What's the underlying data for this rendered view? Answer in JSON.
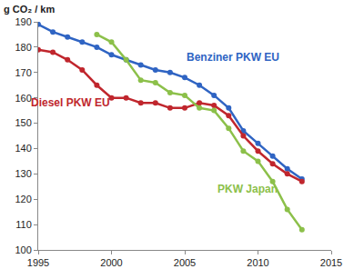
{
  "chart_data": {
    "type": "line",
    "ylabel": "g CO₂ / km",
    "x": [
      1995,
      1996,
      1997,
      1998,
      1999,
      2000,
      2001,
      2002,
      2003,
      2004,
      2005,
      2006,
      2007,
      2008,
      2009,
      2010,
      2011,
      2012,
      2013
    ],
    "series": [
      {
        "name": "Benziner PKW EU",
        "color": "#2f64c3",
        "values": [
          189,
          186,
          184,
          182,
          180,
          177,
          175,
          173,
          171,
          170,
          168,
          165,
          161,
          156,
          147,
          142,
          137,
          132,
          128
        ]
      },
      {
        "name": "Diesel PKW EU",
        "color": "#c0262d",
        "values": [
          179,
          178,
          175,
          171,
          165,
          160,
          160,
          158,
          158,
          156,
          156,
          158,
          157,
          153,
          145,
          139,
          134,
          130,
          127
        ]
      },
      {
        "name": "PKW Japan",
        "color": "#8cc04a",
        "values": [
          null,
          null,
          null,
          null,
          185,
          182,
          175,
          167,
          166,
          162,
          161,
          156,
          155,
          148,
          139,
          135,
          127,
          116,
          108
        ]
      }
    ],
    "xlim": [
      1995,
      2015
    ],
    "xticks": [
      1995,
      2000,
      2005,
      2010,
      2015
    ],
    "ylim": [
      100,
      190
    ],
    "yticks": [
      100,
      110,
      120,
      130,
      140,
      150,
      160,
      170,
      180,
      190
    ],
    "grid": false,
    "marker": "circle",
    "line_style": "solid"
  }
}
